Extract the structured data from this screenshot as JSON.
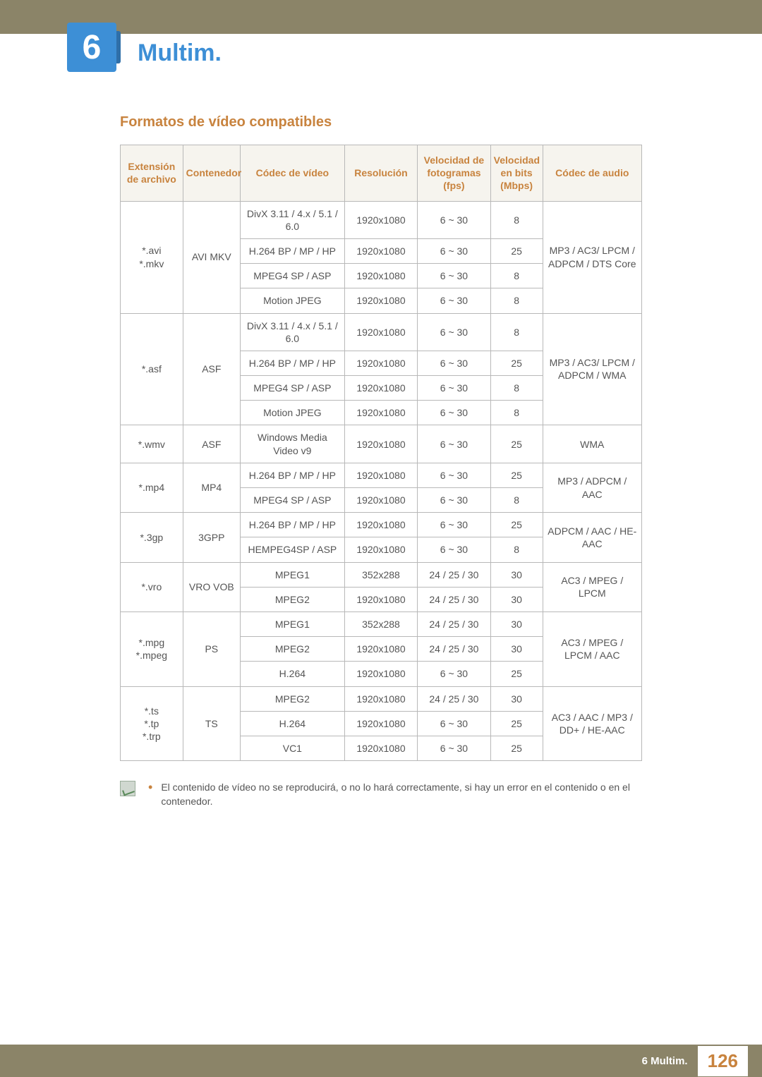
{
  "chapter_number": "6",
  "chapter_title": "Multim.",
  "section_title": "Formatos de vídeo compatibles",
  "footer_chapter": "6 Multim.",
  "footer_page": "126",
  "note_text": "El contenido de vídeo no se reproducirá, o no lo hará correctamente, si hay un error en el contenido o en el contenedor.",
  "headers": {
    "ext": "Extensión de archivo",
    "container": "Contenedor",
    "vcodec": "Códec de vídeo",
    "res": "Resolución",
    "fps": "Velocidad de fotogramas (fps)",
    "mbps": "Velocidad en bits (Mbps)",
    "acodec": "Códec de audio"
  },
  "g1": {
    "ext": "*.avi\n*.mkv",
    "cont": "AVI MKV",
    "ac": "MP3 / AC3/ LPCM / ADPCM / DTS Core",
    "r0": {
      "vc": "DivX 3.11 / 4.x / 5.1 / 6.0",
      "res": "1920x1080",
      "fps": "6 ~ 30",
      "mbps": "8"
    },
    "r1": {
      "vc": "H.264 BP / MP / HP",
      "res": "1920x1080",
      "fps": "6 ~ 30",
      "mbps": "25"
    },
    "r2": {
      "vc": "MPEG4 SP / ASP",
      "res": "1920x1080",
      "fps": "6 ~ 30",
      "mbps": "8"
    },
    "r3": {
      "vc": "Motion JPEG",
      "res": "1920x1080",
      "fps": "6 ~ 30",
      "mbps": "8"
    }
  },
  "g2": {
    "ext": "*.asf",
    "cont": "ASF",
    "ac": "MP3 / AC3/ LPCM / ADPCM / WMA",
    "r0": {
      "vc": "DivX 3.11 / 4.x / 5.1 / 6.0",
      "res": "1920x1080",
      "fps": "6 ~ 30",
      "mbps": "8"
    },
    "r1": {
      "vc": "H.264 BP / MP / HP",
      "res": "1920x1080",
      "fps": "6 ~ 30",
      "mbps": "25"
    },
    "r2": {
      "vc": "MPEG4 SP / ASP",
      "res": "1920x1080",
      "fps": "6 ~ 30",
      "mbps": "8"
    },
    "r3": {
      "vc": "Motion JPEG",
      "res": "1920x1080",
      "fps": "6 ~ 30",
      "mbps": "8"
    }
  },
  "g3": {
    "ext": "*.wmv",
    "cont": "ASF",
    "ac": "WMA",
    "r0": {
      "vc": "Windows Media Video v9",
      "res": "1920x1080",
      "fps": "6 ~ 30",
      "mbps": "25"
    }
  },
  "g4": {
    "ext": "*.mp4",
    "cont": "MP4",
    "ac": "MP3 / ADPCM / AAC",
    "r0": {
      "vc": "H.264 BP / MP / HP",
      "res": "1920x1080",
      "fps": "6 ~ 30",
      "mbps": "25"
    },
    "r1": {
      "vc": "MPEG4 SP / ASP",
      "res": "1920x1080",
      "fps": "6 ~ 30",
      "mbps": "8"
    }
  },
  "g5": {
    "ext": "*.3gp",
    "cont": "3GPP",
    "ac": "ADPCM / AAC / HE-AAC",
    "r0": {
      "vc": "H.264 BP / MP / HP",
      "res": "1920x1080",
      "fps": "6 ~ 30",
      "mbps": "25"
    },
    "r1": {
      "vc": "HEMPEG4SP / ASP",
      "res": "1920x1080",
      "fps": "6 ~ 30",
      "mbps": "8"
    }
  },
  "g6": {
    "ext": "*.vro",
    "cont": "VRO VOB",
    "ac": "AC3 / MPEG / LPCM",
    "r0": {
      "vc": "MPEG1",
      "res": "352x288",
      "fps": "24 / 25 / 30",
      "mbps": "30"
    },
    "r1": {
      "vc": "MPEG2",
      "res": "1920x1080",
      "fps": "24 / 25 / 30",
      "mbps": "30"
    }
  },
  "g7": {
    "ext": "*.mpg\n*.mpeg",
    "cont": "PS",
    "ac": "AC3 / MPEG / LPCM / AAC",
    "r0": {
      "vc": "MPEG1",
      "res": "352x288",
      "fps": "24 / 25 / 30",
      "mbps": "30"
    },
    "r1": {
      "vc": "MPEG2",
      "res": "1920x1080",
      "fps": "24 / 25 / 30",
      "mbps": "30"
    },
    "r2": {
      "vc": "H.264",
      "res": "1920x1080",
      "fps": "6 ~ 30",
      "mbps": "25"
    }
  },
  "g8": {
    "ext": "*.ts\n*.tp\n*.trp",
    "cont": "TS",
    "ac": "AC3 / AAC / MP3 / DD+ / HE-AAC",
    "r0": {
      "vc": "MPEG2",
      "res": "1920x1080",
      "fps": "24 / 25 / 30",
      "mbps": "30"
    },
    "r1": {
      "vc": "H.264",
      "res": "1920x1080",
      "fps": "6 ~ 30",
      "mbps": "25"
    },
    "r2": {
      "vc": "VC1",
      "res": "1920x1080",
      "fps": "6 ~ 30",
      "mbps": "25"
    }
  }
}
